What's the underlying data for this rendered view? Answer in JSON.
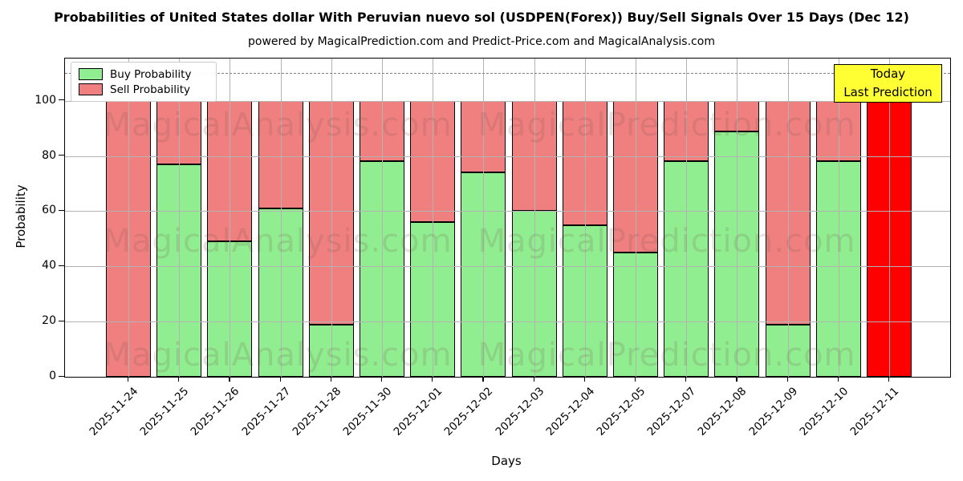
{
  "chart_data": {
    "type": "bar",
    "stacked": true,
    "title": "Probabilities of United States dollar With Peruvian nuevo sol (USDPEN(Forex)) Buy/Sell Signals Over 15 Days (Dec 12)",
    "subtitle": "powered by MagicalPrediction.com and Predict-Price.com and MagicalAnalysis.com",
    "xlabel": "Days",
    "ylabel": "Probability",
    "categories": [
      "2025-11-24",
      "2025-11-25",
      "2025-11-26",
      "2025-11-27",
      "2025-11-28",
      "2025-11-30",
      "2025-12-01",
      "2025-12-02",
      "2025-12-03",
      "2025-12-04",
      "2025-12-05",
      "2025-12-07",
      "2025-12-08",
      "2025-12-09",
      "2025-12-10",
      "2025-12-11"
    ],
    "series": [
      {
        "name": "Buy Probability",
        "color": "#90EE90",
        "values": [
          0,
          77,
          49,
          61,
          19,
          78,
          56,
          74,
          60,
          55,
          45,
          78,
          89,
          19,
          78,
          0
        ]
      },
      {
        "name": "Sell Probability",
        "color": "#F08080",
        "values": [
          100,
          23,
          51,
          39,
          81,
          22,
          44,
          26,
          40,
          45,
          55,
          22,
          11,
          81,
          22,
          100
        ]
      }
    ],
    "today_bar": {
      "category": "2025-12-11",
      "color": "#FF0000"
    },
    "ylim": [
      0,
      115
    ],
    "yticks": [
      0,
      20,
      40,
      60,
      80,
      100
    ],
    "dashed_guideline_y": 110,
    "grid": true,
    "legend_position": "upper left",
    "bar_edge_color": "#000000",
    "grid_color": "#b3b3b3"
  },
  "legend": {
    "items": [
      {
        "label": "Buy Probability",
        "color": "#90EE90"
      },
      {
        "label": "Sell Probability",
        "color": "#F08080"
      }
    ]
  },
  "annotation": {
    "line1": "Today",
    "line2": "Last Prediction",
    "bg_color": "#FFFF33"
  },
  "watermarks": {
    "left_text": "MagicalAnalysis.com",
    "right_text": "MagicalPrediction.com"
  }
}
